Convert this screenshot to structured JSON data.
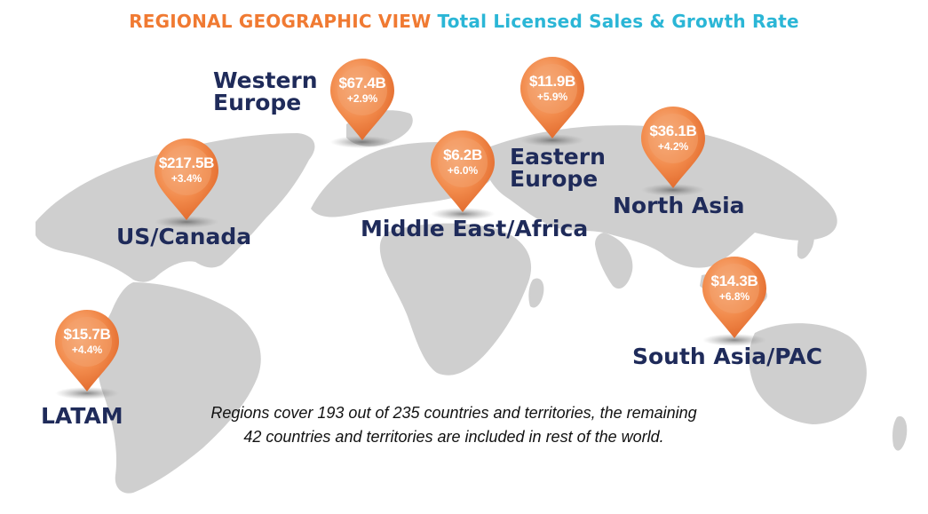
{
  "title": {
    "part1": "REGIONAL GEOGRAPHIC VIEW",
    "part2": "Total Licensed Sales & Growth Rate"
  },
  "colors": {
    "title_orange": "#f07a32",
    "title_cyan": "#2bb6d6",
    "pin_orange": "#f08a4a",
    "region_name_navy": "#1f2b5a",
    "land_gray": "#cfcfcf"
  },
  "regions": [
    {
      "name": "US/Canada",
      "sales": "$217.5B",
      "growth": "+3.4%"
    },
    {
      "name": "Western Europe",
      "sales": "$67.4B",
      "growth": "+2.9%"
    },
    {
      "name": "Middle East/Africa",
      "sales": "$6.2B",
      "growth": "+6.0%"
    },
    {
      "name": "Eastern Europe",
      "sales": "$11.9B",
      "growth": "+5.9%"
    },
    {
      "name": "North Asia",
      "sales": "$36.1B",
      "growth": "+4.2%"
    },
    {
      "name": "South Asia/PAC",
      "sales": "$14.3B",
      "growth": "+6.8%"
    },
    {
      "name": "LATAM",
      "sales": "$15.7B",
      "growth": "+4.4%"
    }
  ],
  "note": {
    "line1": "Regions cover 193 out of 235 countries and territories, the remaining",
    "line2": "42 countries and territories are included in rest of the world."
  }
}
